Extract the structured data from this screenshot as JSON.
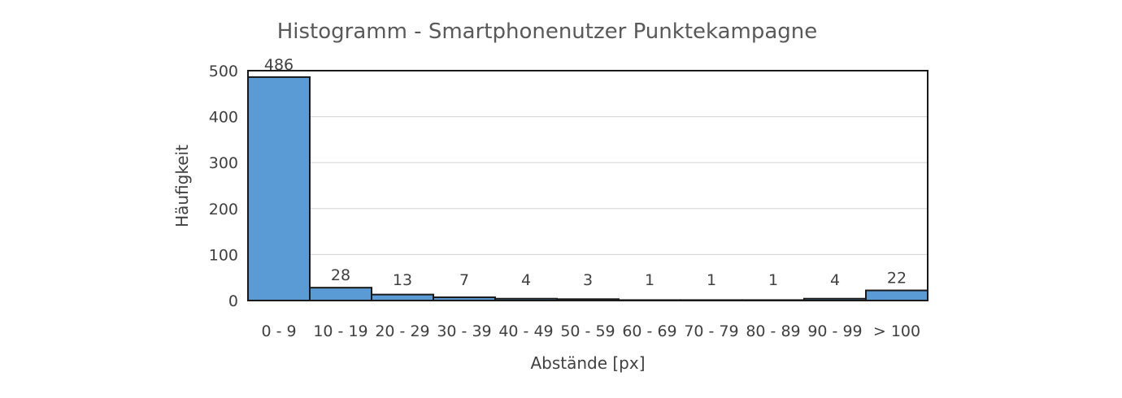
{
  "chart_data": {
    "type": "bar",
    "title": "Histogramm - Smartphonenutzer Punktekampagne",
    "xlabel": "Abstände [px]",
    "ylabel": "Häufigkeit",
    "categories": [
      "0 - 9",
      "10 - 19",
      "20 - 29",
      "30 - 39",
      "40 - 49",
      "50 - 59",
      "60 - 69",
      "70 - 79",
      "80 - 89",
      "90 - 99",
      "> 100"
    ],
    "values": [
      486,
      28,
      13,
      7,
      4,
      3,
      1,
      1,
      1,
      4,
      22
    ],
    "ylim": [
      0,
      500
    ],
    "yticks": [
      0,
      100,
      200,
      300,
      400,
      500
    ],
    "grid": true,
    "bar_color": "#5b9bd5",
    "border_color": "#1a1a1a"
  }
}
